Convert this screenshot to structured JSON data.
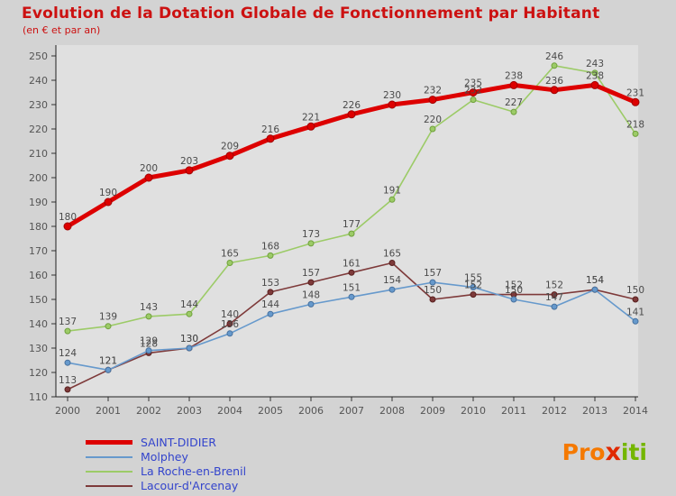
{
  "header": {
    "title": "Evolution de la Dotation Globale de Fonctionnement par Habitant",
    "subtitle": "(en € et par an)",
    "title_color": "#cc1111"
  },
  "chart_data": {
    "type": "line",
    "x": [
      2000,
      2001,
      2002,
      2003,
      2004,
      2005,
      2006,
      2007,
      2008,
      2009,
      2010,
      2011,
      2012,
      2013,
      2014
    ],
    "ylim": [
      110,
      250
    ],
    "ytick_step": 10,
    "grid": false,
    "legend_position": "bottom-left",
    "series": [
      {
        "name": "SAINT-DIDIER",
        "color": "#dd0000",
        "point_stroke": "#a00000",
        "line_width": 5,
        "values": [
          180,
          190,
          200,
          203,
          209,
          216,
          221,
          226,
          230,
          232,
          235,
          238,
          236,
          238,
          231
        ]
      },
      {
        "name": "Molphey",
        "color": "#6699cc",
        "point_stroke": "#46709e",
        "line_width": 1.6,
        "values": [
          124,
          121,
          129,
          130,
          136,
          144,
          148,
          151,
          154,
          157,
          155,
          150,
          147,
          154,
          141
        ]
      },
      {
        "name": "La Roche-en-Brenil",
        "color": "#9ccb67",
        "point_stroke": "#6fa03c",
        "line_width": 1.6,
        "values": [
          137,
          139,
          143,
          144,
          165,
          168,
          173,
          177,
          191,
          220,
          232,
          227,
          246,
          243,
          218
        ]
      },
      {
        "name": "Lacour-d'Arcenay",
        "color": "#7e3a3a",
        "point_stroke": "#58201f",
        "line_width": 1.6,
        "values": [
          113,
          121,
          128,
          130,
          140,
          153,
          157,
          161,
          165,
          150,
          152,
          152,
          152,
          154,
          150
        ]
      }
    ]
  },
  "logo": {
    "pro": "Pro",
    "x": "x",
    "iti": "iti"
  }
}
